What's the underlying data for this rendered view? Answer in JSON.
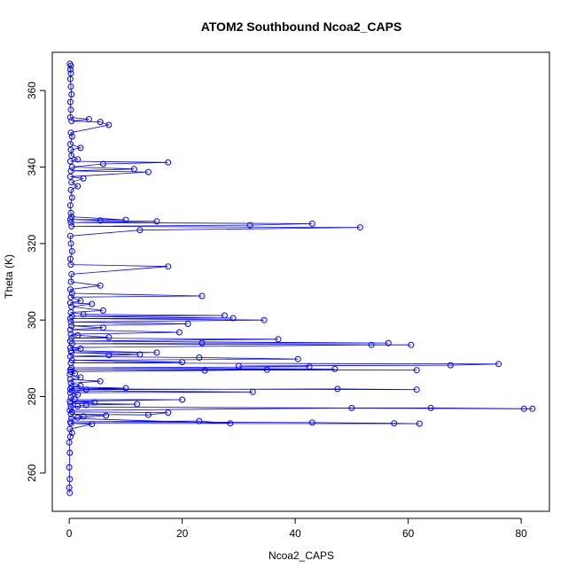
{
  "chart_data": {
    "type": "scatter",
    "title": "ATOM2 Southbound Ncoa2_CAPS",
    "xlabel": "Ncoa2_CAPS",
    "ylabel": "Theta (K)",
    "xlim": [
      -3,
      85
    ],
    "ylim": [
      250,
      370
    ],
    "x_ticks": [
      0,
      20,
      40,
      60,
      80
    ],
    "y_ticks": [
      260,
      280,
      300,
      320,
      340,
      360
    ],
    "grid": false,
    "connected": true,
    "colors": {
      "line": "#0000ff",
      "points": "#0000ff",
      "frame": "#000000"
    },
    "series": [
      {
        "points": [
          [
            0.1,
            254.8
          ],
          [
            0.0,
            256.2
          ],
          [
            0.1,
            258.4
          ],
          [
            0.0,
            261.5
          ],
          [
            0.1,
            265.3
          ],
          [
            0.0,
            268.0
          ],
          [
            0.2,
            269.5
          ],
          [
            0.5,
            270.5
          ],
          [
            0.1,
            271.5
          ],
          [
            4.0,
            272.8
          ],
          [
            0.3,
            273.0
          ],
          [
            62.0,
            272.9
          ],
          [
            57.5,
            273.0
          ],
          [
            43.0,
            273.2
          ],
          [
            0.2,
            273.4
          ],
          [
            23.0,
            273.6
          ],
          [
            28.5,
            273.0
          ],
          [
            0.4,
            274.3
          ],
          [
            2.5,
            274.8
          ],
          [
            1.5,
            274.5
          ],
          [
            6.5,
            275.0
          ],
          [
            0.3,
            275.4
          ],
          [
            14.0,
            275.2
          ],
          [
            17.5,
            275.8
          ],
          [
            0.5,
            276.0
          ],
          [
            0.1,
            276.4
          ],
          [
            50.0,
            277.0
          ],
          [
            64.0,
            277.0
          ],
          [
            82.0,
            276.8
          ],
          [
            80.5,
            276.8
          ],
          [
            0.3,
            277.3
          ],
          [
            1.5,
            277.5
          ],
          [
            3.0,
            277.8
          ],
          [
            12.0,
            278.0
          ],
          [
            0.2,
            278.2
          ],
          [
            4.5,
            278.5
          ],
          [
            0.1,
            278.8
          ],
          [
            20.0,
            279.2
          ],
          [
            1.0,
            279.2
          ],
          [
            0.3,
            279.8
          ],
          [
            1.5,
            280.5
          ],
          [
            0.2,
            281.0
          ],
          [
            32.5,
            281.2
          ],
          [
            0.5,
            281.5
          ],
          [
            3.0,
            281.8
          ],
          [
            47.5,
            282.0
          ],
          [
            61.5,
            281.8
          ],
          [
            0.2,
            282.0
          ],
          [
            10.0,
            282.2
          ],
          [
            0.4,
            282.5
          ],
          [
            2.0,
            282.8
          ],
          [
            0.3,
            283.5
          ],
          [
            5.5,
            284.0
          ],
          [
            0.2,
            284.5
          ],
          [
            2.0,
            285.0
          ],
          [
            0.1,
            285.8
          ],
          [
            1.0,
            286.0
          ],
          [
            0.3,
            286.5
          ],
          [
            24.0,
            286.8
          ],
          [
            35.0,
            287.0
          ],
          [
            61.5,
            286.9
          ],
          [
            0.2,
            287.0
          ],
          [
            47.0,
            287.2
          ],
          [
            0.4,
            287.5
          ],
          [
            42.5,
            287.8
          ],
          [
            30.0,
            288.0
          ],
          [
            67.5,
            288.2
          ],
          [
            76.0,
            288.5
          ],
          [
            0.3,
            288.8
          ],
          [
            20.0,
            289.0
          ],
          [
            0.5,
            289.5
          ],
          [
            40.5,
            289.8
          ],
          [
            23.0,
            290.2
          ],
          [
            0.2,
            290.5
          ],
          [
            7.0,
            290.8
          ],
          [
            12.5,
            291.0
          ],
          [
            0.4,
            291.5
          ],
          [
            15.5,
            291.5
          ],
          [
            0.3,
            292.0
          ],
          [
            2.0,
            292.5
          ],
          [
            0.2,
            292.8
          ],
          [
            53.5,
            293.5
          ],
          [
            60.5,
            293.5
          ],
          [
            0.5,
            293.8
          ],
          [
            23.5,
            294.0
          ],
          [
            56.5,
            294.0
          ],
          [
            0.2,
            294.5
          ],
          [
            37.0,
            295.0
          ],
          [
            0.4,
            295.3
          ],
          [
            7.0,
            295.5
          ],
          [
            1.5,
            296.0
          ],
          [
            0.3,
            296.3
          ],
          [
            19.5,
            296.8
          ],
          [
            0.2,
            297.5
          ],
          [
            6.0,
            298.0
          ],
          [
            0.4,
            298.5
          ],
          [
            21.0,
            299.0
          ],
          [
            0.3,
            299.5
          ],
          [
            34.5,
            300.0
          ],
          [
            0.2,
            300.4
          ],
          [
            29.0,
            300.5
          ],
          [
            0.5,
            301.0
          ],
          [
            27.5,
            301.2
          ],
          [
            2.5,
            301.5
          ],
          [
            0.3,
            302.0
          ],
          [
            6.0,
            302.5
          ],
          [
            0.4,
            303.5
          ],
          [
            4.0,
            304.2
          ],
          [
            0.2,
            304.5
          ],
          [
            2.0,
            305.0
          ],
          [
            0.3,
            306.0
          ],
          [
            23.5,
            306.3
          ],
          [
            0.5,
            307.0
          ],
          [
            0.2,
            308.0
          ],
          [
            5.5,
            309.0
          ],
          [
            0.3,
            310.0
          ],
          [
            0.4,
            312.0
          ],
          [
            17.5,
            314.0
          ],
          [
            0.3,
            314.5
          ],
          [
            0.2,
            316.0
          ],
          [
            0.5,
            318.0
          ],
          [
            0.3,
            320.0
          ],
          [
            0.2,
            322.0
          ],
          [
            12.5,
            323.5
          ],
          [
            51.5,
            324.2
          ],
          [
            0.4,
            324.5
          ],
          [
            32.0,
            324.8
          ],
          [
            43.0,
            325.2
          ],
          [
            0.3,
            325.5
          ],
          [
            15.5,
            325.8
          ],
          [
            5.5,
            326.0
          ],
          [
            0.2,
            326.3
          ],
          [
            10.0,
            326.2
          ],
          [
            0.4,
            327.0
          ],
          [
            0.3,
            328.0
          ],
          [
            0.2,
            330.0
          ],
          [
            0.5,
            332.0
          ],
          [
            0.3,
            334.0
          ],
          [
            1.5,
            335.0
          ],
          [
            0.4,
            336.0
          ],
          [
            2.5,
            337.0
          ],
          [
            0.2,
            337.5
          ],
          [
            14.0,
            338.7
          ],
          [
            0.3,
            339.0
          ],
          [
            11.5,
            339.5
          ],
          [
            0.5,
            340.0
          ],
          [
            6.0,
            340.8
          ],
          [
            17.5,
            341.2
          ],
          [
            0.2,
            341.5
          ],
          [
            1.5,
            342.0
          ],
          [
            0.4,
            343.0
          ],
          [
            0.3,
            344.5
          ],
          [
            2.0,
            345.0
          ],
          [
            0.2,
            346.0
          ],
          [
            0.5,
            348.0
          ],
          [
            0.3,
            349.0
          ],
          [
            7.0,
            351.0
          ],
          [
            5.5,
            351.8
          ],
          [
            0.4,
            352.0
          ],
          [
            3.5,
            352.5
          ],
          [
            0.2,
            353.0
          ],
          [
            0.3,
            355.0
          ],
          [
            0.2,
            357.0
          ],
          [
            0.4,
            359.0
          ],
          [
            0.3,
            361.0
          ],
          [
            0.2,
            363.0
          ],
          [
            0.3,
            364.5
          ],
          [
            0.2,
            365.5
          ],
          [
            0.3,
            366.5
          ],
          [
            0.1,
            367.0
          ]
        ]
      }
    ]
  }
}
